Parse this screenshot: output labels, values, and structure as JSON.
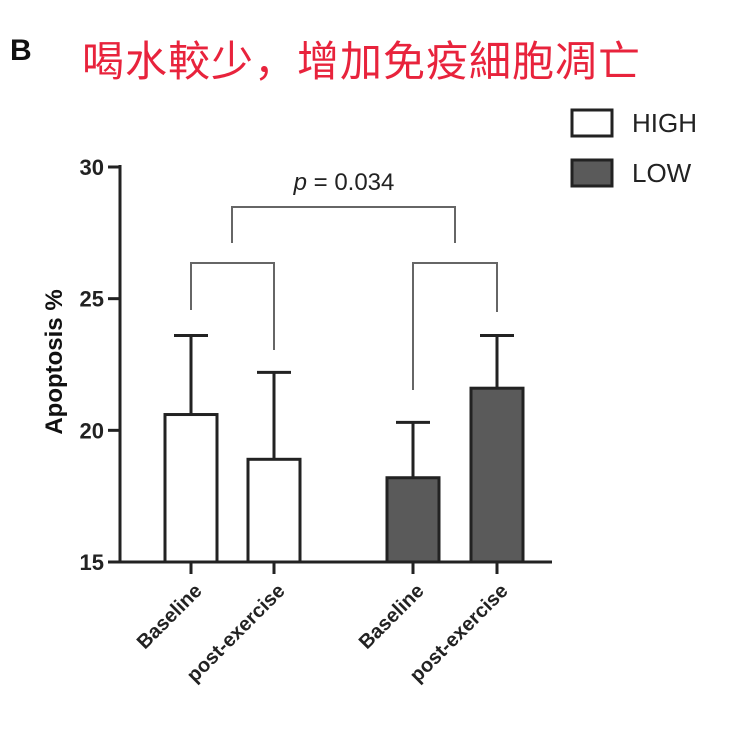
{
  "panel_label": "B",
  "headline": "喝水較少，增加免疫細胞凋亡",
  "chart_data": {
    "type": "bar",
    "ylabel": "Apoptosis %",
    "xlabel": "",
    "ylim": [
      15,
      30
    ],
    "yticks": [
      "15",
      "20",
      "25",
      "30"
    ],
    "categories": [
      "Baseline",
      "post-exercise",
      "Baseline",
      "post-exercise"
    ],
    "groups": [
      {
        "name": "HIGH",
        "fill": "#ffffff",
        "bars": [
          {
            "category": "Baseline",
            "value": 20.6,
            "error": 3.0
          },
          {
            "category": "post-exercise",
            "value": 18.9,
            "error": 3.3
          }
        ]
      },
      {
        "name": "LOW",
        "fill": "#5a5a5a",
        "bars": [
          {
            "category": "Baseline",
            "value": 18.2,
            "error": 2.1
          },
          {
            "category": "post-exercise",
            "value": 21.6,
            "error": 2.0
          }
        ]
      }
    ],
    "legend": {
      "position": "top-right",
      "entries": [
        "HIGH",
        "LOW"
      ]
    },
    "annotation": {
      "text_prefix": "p",
      "text_suffix": " = 0.034"
    },
    "grid": false
  }
}
